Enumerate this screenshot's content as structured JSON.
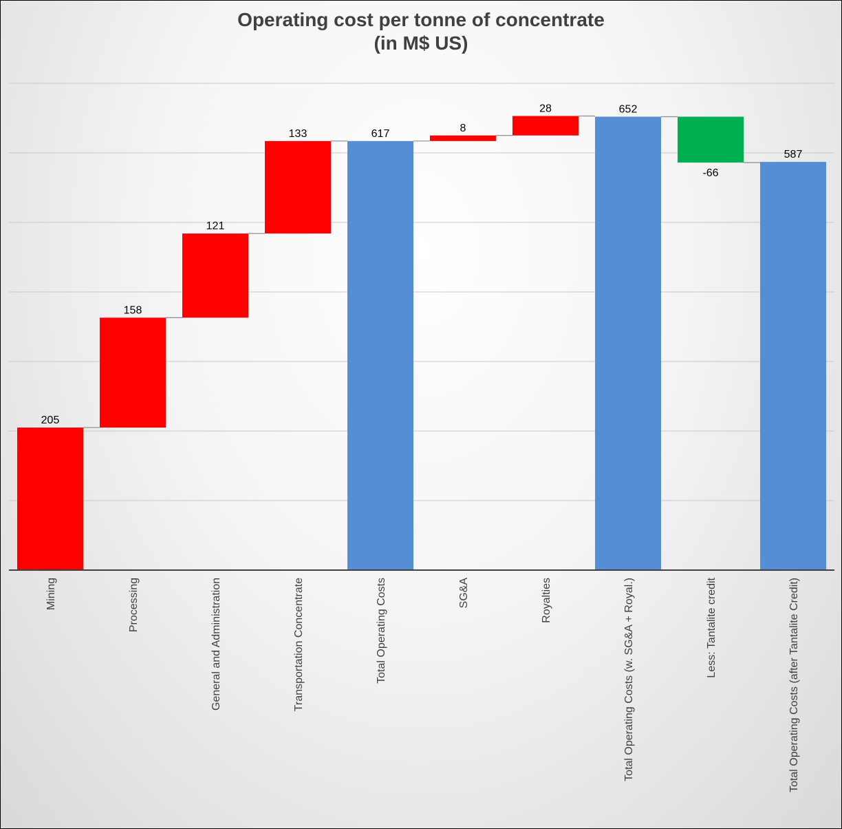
{
  "chart_data": {
    "type": "waterfall",
    "title": "Operating cost per tonne of concentrate",
    "subtitle": "(in M$ US)",
    "xlabel": "",
    "ylabel": "",
    "ylim": [
      0,
      700
    ],
    "grid": true,
    "legend": "none",
    "categories": [
      "Mining",
      "Processing",
      "General and Administration",
      "Transportation Concentrate",
      "Total Operating Costs",
      "SG&A",
      "Royalties",
      "Total Operating Costs (w. SG&A + Royal.)",
      "Less: Tantalite credit",
      "Total Operating Costs (after Tantalite Credit)"
    ],
    "values": [
      205,
      158,
      121,
      133,
      617,
      8,
      28,
      652,
      -66,
      587
    ],
    "kinds": [
      "increase",
      "increase",
      "increase",
      "increase",
      "total",
      "increase",
      "increase",
      "total",
      "decrease",
      "total"
    ],
    "labels": [
      "205",
      "158",
      "121",
      "133",
      "617",
      "8",
      "28",
      "652",
      "-66",
      "587"
    ],
    "colors": {
      "increase": "#ff0000",
      "decrease": "#00b050",
      "total": "#558ed5",
      "connector": "#8c8c8c",
      "grid": "#c8c8c8",
      "axis": "#404040"
    }
  }
}
